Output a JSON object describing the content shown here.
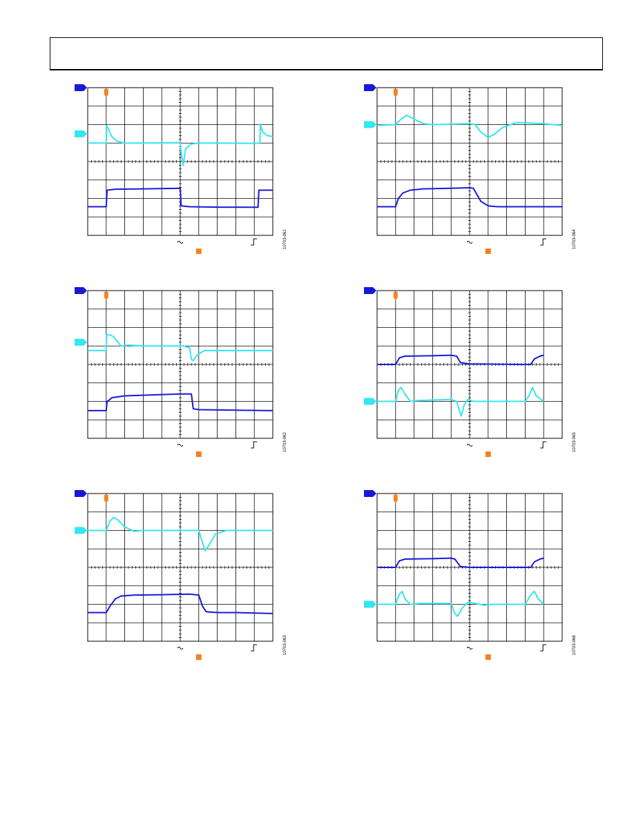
{
  "colors": {
    "trace_load": "#1818d8",
    "trace_output": "#33e6f0",
    "trigger": "#f58220",
    "grid": "#000000"
  },
  "chart_data": [
    {
      "type": "line",
      "figure_id": "10703-061",
      "grid": true,
      "divisions": {
        "x": 10,
        "y": 8
      },
      "series": [
        {
          "color": "#33e6f0",
          "marker_level": 5.5,
          "values": [
            [
              0,
              5.0
            ],
            [
              1.0,
              5.0
            ],
            [
              1.02,
              5.95
            ],
            [
              1.1,
              5.8
            ],
            [
              1.3,
              5.35
            ],
            [
              1.6,
              5.1
            ],
            [
              2.0,
              5.0
            ],
            [
              3.0,
              5.0
            ],
            [
              5.0,
              5.02
            ],
            [
              5.05,
              4.5
            ],
            [
              5.15,
              3.8
            ],
            [
              5.3,
              4.7
            ],
            [
              5.6,
              4.95
            ],
            [
              6.0,
              5.0
            ],
            [
              7.0,
              5.0
            ],
            [
              9.0,
              4.98
            ],
            [
              9.3,
              5.0
            ],
            [
              9.33,
              6.0
            ],
            [
              9.45,
              5.6
            ],
            [
              9.7,
              5.4
            ],
            [
              10,
              5.35
            ]
          ]
        },
        {
          "color": "#1818d8",
          "marker_level": 8.0,
          "values": [
            [
              0,
              1.55
            ],
            [
              1.0,
              1.55
            ],
            [
              1.05,
              2.45
            ],
            [
              1.5,
              2.5
            ],
            [
              3.0,
              2.52
            ],
            [
              5.0,
              2.55
            ],
            [
              5.05,
              1.6
            ],
            [
              5.5,
              1.55
            ],
            [
              7.0,
              1.53
            ],
            [
              9.0,
              1.52
            ],
            [
              9.2,
              1.52
            ],
            [
              9.25,
              2.45
            ],
            [
              10,
              2.45
            ]
          ]
        }
      ]
    },
    {
      "type": "line",
      "figure_id": "10703-064",
      "grid": true,
      "divisions": {
        "x": 10,
        "y": 8
      },
      "series": [
        {
          "color": "#33e6f0",
          "marker_level": 6.0,
          "values": [
            [
              0,
              5.95
            ],
            [
              1.0,
              6.0
            ],
            [
              1.3,
              6.3
            ],
            [
              1.6,
              6.5
            ],
            [
              2.0,
              6.3
            ],
            [
              2.5,
              6.05
            ],
            [
              3.0,
              6.0
            ],
            [
              5.0,
              6.05
            ],
            [
              5.3,
              6.0
            ],
            [
              5.6,
              5.6
            ],
            [
              6.0,
              5.3
            ],
            [
              6.3,
              5.45
            ],
            [
              6.8,
              5.85
            ],
            [
              7.5,
              6.1
            ],
            [
              8.0,
              6.1
            ],
            [
              9.0,
              6.05
            ],
            [
              10,
              5.95
            ]
          ]
        },
        {
          "color": "#1818d8",
          "marker_level": 8.0,
          "values": [
            [
              0,
              1.55
            ],
            [
              1.0,
              1.55
            ],
            [
              1.15,
              2.0
            ],
            [
              1.4,
              2.3
            ],
            [
              1.8,
              2.45
            ],
            [
              2.5,
              2.52
            ],
            [
              4.0,
              2.55
            ],
            [
              5.0,
              2.58
            ],
            [
              5.2,
              2.55
            ],
            [
              5.6,
              1.85
            ],
            [
              6.0,
              1.6
            ],
            [
              6.5,
              1.55
            ],
            [
              8.0,
              1.55
            ],
            [
              10,
              1.55
            ]
          ]
        }
      ]
    },
    {
      "type": "line",
      "figure_id": "10703-062",
      "grid": true,
      "divisions": {
        "x": 10,
        "y": 8
      },
      "series": [
        {
          "color": "#33e6f0",
          "marker_level": 5.2,
          "values": [
            [
              0,
              4.75
            ],
            [
              1.0,
              4.75
            ],
            [
              1.03,
              5.6
            ],
            [
              1.2,
              5.6
            ],
            [
              1.4,
              5.5
            ],
            [
              1.8,
              5.0
            ],
            [
              2.2,
              5.05
            ],
            [
              3.0,
              5.0
            ],
            [
              4.0,
              5.0
            ],
            [
              5.2,
              5.0
            ],
            [
              5.5,
              4.9
            ],
            [
              5.6,
              4.3
            ],
            [
              5.7,
              4.2
            ],
            [
              5.9,
              4.5
            ],
            [
              6.3,
              4.75
            ],
            [
              7.0,
              4.75
            ],
            [
              10,
              4.75
            ]
          ]
        },
        {
          "color": "#1818d8",
          "marker_level": 8.0,
          "values": [
            [
              0,
              1.5
            ],
            [
              1.0,
              1.5
            ],
            [
              1.05,
              2.0
            ],
            [
              1.2,
              2.1
            ],
            [
              1.3,
              2.2
            ],
            [
              2.0,
              2.3
            ],
            [
              3.5,
              2.35
            ],
            [
              5.0,
              2.4
            ],
            [
              5.6,
              2.4
            ],
            [
              5.7,
              1.6
            ],
            [
              6.0,
              1.55
            ],
            [
              8.0,
              1.52
            ],
            [
              10,
              1.5
            ]
          ]
        }
      ]
    },
    {
      "type": "line",
      "figure_id": "10703-065",
      "grid": true,
      "divisions": {
        "x": 10,
        "y": 8
      },
      "series": [
        {
          "color": "#1818d8",
          "marker_level": 8.0,
          "values": [
            [
              0,
              4.0
            ],
            [
              1.0,
              4.0
            ],
            [
              1.2,
              4.35
            ],
            [
              1.5,
              4.45
            ],
            [
              3.0,
              4.47
            ],
            [
              4.0,
              4.5
            ],
            [
              4.3,
              4.45
            ],
            [
              4.5,
              4.1
            ],
            [
              5.0,
              4.03
            ],
            [
              8.0,
              4.0
            ],
            [
              8.3,
              4.0
            ],
            [
              8.5,
              4.3
            ],
            [
              8.8,
              4.45
            ],
            [
              9.0,
              4.5
            ]
          ]
        },
        {
          "color": "#33e6f0",
          "marker_level": 2.0,
          "values": [
            [
              0,
              2.0
            ],
            [
              1.0,
              2.0
            ],
            [
              1.15,
              2.6
            ],
            [
              1.3,
              2.75
            ],
            [
              1.5,
              2.4
            ],
            [
              1.8,
              2.0
            ],
            [
              2.2,
              2.05
            ],
            [
              4.0,
              2.1
            ],
            [
              4.3,
              2.0
            ],
            [
              4.45,
              1.5
            ],
            [
              4.55,
              1.2
            ],
            [
              4.7,
              1.8
            ],
            [
              4.9,
              2.1
            ],
            [
              5.2,
              2.0
            ],
            [
              8.0,
              2.0
            ],
            [
              8.2,
              2.3
            ],
            [
              8.4,
              2.75
            ],
            [
              8.6,
              2.3
            ],
            [
              9.0,
              2.0
            ]
          ]
        }
      ]
    },
    {
      "type": "line",
      "figure_id": "10703-063",
      "grid": true,
      "divisions": {
        "x": 10,
        "y": 8
      },
      "series": [
        {
          "color": "#33e6f0",
          "marker_level": 6.0,
          "values": [
            [
              0,
              6.0
            ],
            [
              1.0,
              6.0
            ],
            [
              1.2,
              6.5
            ],
            [
              1.4,
              6.7
            ],
            [
              1.6,
              6.6
            ],
            [
              2.0,
              6.2
            ],
            [
              2.5,
              5.95
            ],
            [
              3.0,
              6.0
            ],
            [
              6.0,
              6.0
            ],
            [
              6.15,
              5.5
            ],
            [
              6.35,
              4.9
            ],
            [
              6.55,
              5.2
            ],
            [
              6.9,
              5.8
            ],
            [
              7.5,
              6.0
            ],
            [
              8.5,
              6.0
            ],
            [
              10,
              6.0
            ]
          ]
        },
        {
          "color": "#1818d8",
          "marker_level": 8.0,
          "values": [
            [
              0,
              1.55
            ],
            [
              1.0,
              1.55
            ],
            [
              1.2,
              1.9
            ],
            [
              1.5,
              2.3
            ],
            [
              1.8,
              2.45
            ],
            [
              2.5,
              2.5
            ],
            [
              4.0,
              2.52
            ],
            [
              5.5,
              2.55
            ],
            [
              6.0,
              2.5
            ],
            [
              6.2,
              1.9
            ],
            [
              6.4,
              1.6
            ],
            [
              7.0,
              1.55
            ],
            [
              8.0,
              1.55
            ],
            [
              10,
              1.5
            ]
          ]
        }
      ]
    },
    {
      "type": "line",
      "figure_id": "10703-066",
      "grid": true,
      "divisions": {
        "x": 10,
        "y": 8
      },
      "series": [
        {
          "color": "#1818d8",
          "marker_level": 8.0,
          "values": [
            [
              0,
              4.0
            ],
            [
              1.0,
              4.0
            ],
            [
              1.2,
              4.35
            ],
            [
              1.5,
              4.45
            ],
            [
              3.0,
              4.47
            ],
            [
              4.0,
              4.5
            ],
            [
              4.2,
              4.45
            ],
            [
              4.5,
              4.05
            ],
            [
              5.0,
              4.0
            ],
            [
              8.3,
              4.0
            ],
            [
              8.5,
              4.3
            ],
            [
              8.8,
              4.45
            ],
            [
              9.0,
              4.5
            ]
          ]
        },
        {
          "color": "#33e6f0",
          "marker_level": 2.0,
          "values": [
            [
              0,
              2.0
            ],
            [
              1.0,
              2.0
            ],
            [
              1.2,
              2.55
            ],
            [
              1.35,
              2.7
            ],
            [
              1.5,
              2.3
            ],
            [
              1.8,
              2.0
            ],
            [
              2.3,
              2.05
            ],
            [
              4.0,
              2.05
            ],
            [
              4.2,
              1.5
            ],
            [
              4.35,
              1.35
            ],
            [
              4.6,
              1.8
            ],
            [
              4.9,
              2.1
            ],
            [
              5.3,
              2.05
            ],
            [
              5.8,
              1.95
            ],
            [
              6.2,
              2.0
            ],
            [
              8.0,
              2.0
            ],
            [
              8.3,
              2.5
            ],
            [
              8.5,
              2.7
            ],
            [
              8.7,
              2.3
            ],
            [
              9.0,
              2.0
            ]
          ]
        }
      ]
    }
  ]
}
